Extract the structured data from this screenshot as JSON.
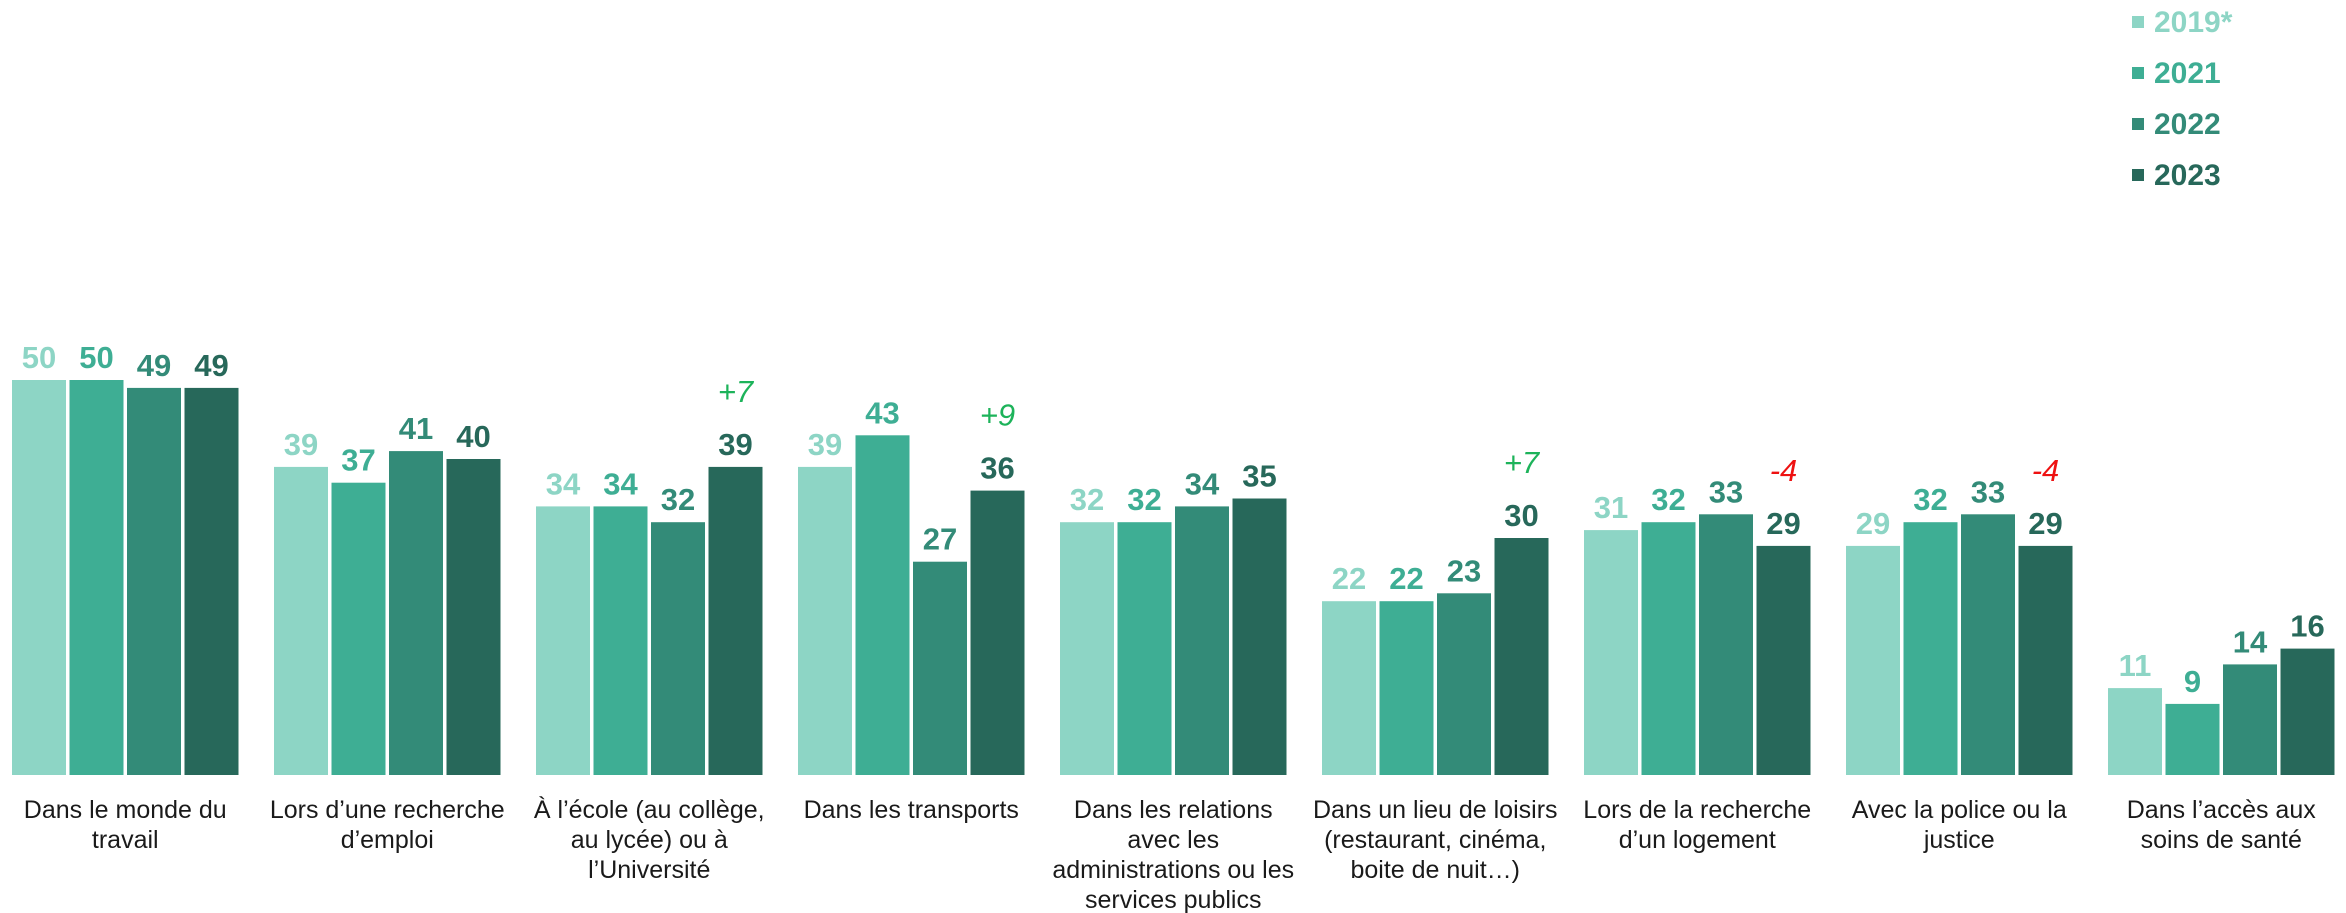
{
  "chart_data": {
    "type": "bar",
    "categories": [
      [
        "Dans le monde du",
        "travail"
      ],
      [
        "Lors d’une recherche",
        "d’emploi"
      ],
      [
        "À l’école (au collège,",
        "au lycée) ou à",
        "l’Université"
      ],
      [
        "Dans les transports"
      ],
      [
        "Dans les relations",
        "avec les",
        "administrations ou les",
        "services publics"
      ],
      [
        "Dans un lieu de loisirs",
        "(restaurant, cinéma,",
        "boite de nuit…)"
      ],
      [
        "Lors de la recherche",
        "d’un logement"
      ],
      [
        "Avec la police ou la",
        "justice"
      ],
      [
        "Dans l’accès aux",
        "soins de santé"
      ]
    ],
    "series": [
      {
        "name": "2019*",
        "color": "#8dd5c5",
        "values": [
          50,
          39,
          34,
          39,
          32,
          22,
          31,
          29,
          11
        ]
      },
      {
        "name": "2021",
        "color": "#3eae94",
        "values": [
          50,
          37,
          34,
          43,
          32,
          22,
          32,
          32,
          9
        ]
      },
      {
        "name": "2022",
        "color": "#338b78",
        "values": [
          49,
          41,
          32,
          27,
          34,
          23,
          33,
          33,
          14
        ]
      },
      {
        "name": "2023",
        "color": "#27685a",
        "values": [
          49,
          40,
          39,
          36,
          35,
          30,
          29,
          29,
          16
        ]
      }
    ],
    "annotations": [
      {
        "category_index": 2,
        "text": "+7",
        "color": "#1db35a"
      },
      {
        "category_index": 3,
        "text": "+9",
        "color": "#1db35a"
      },
      {
        "category_index": 5,
        "text": "+7",
        "color": "#1db35a"
      },
      {
        "category_index": 6,
        "text": "-4",
        "color": "#ee1111"
      },
      {
        "category_index": 7,
        "text": "-4",
        "color": "#ee1111"
      }
    ],
    "ylim": [
      0,
      50
    ],
    "grid": false,
    "legend_position": "top-right",
    "title": "",
    "xlabel": "",
    "ylabel": ""
  }
}
